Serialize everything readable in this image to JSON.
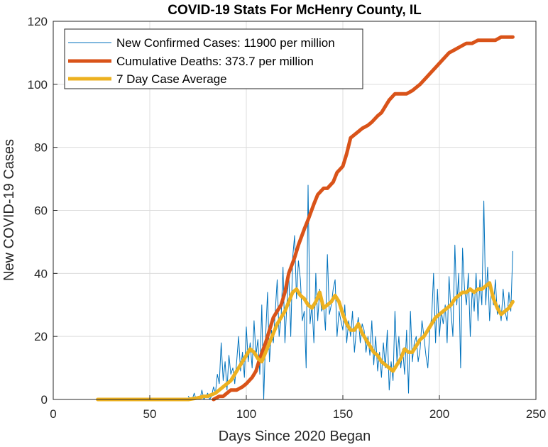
{
  "chart_data": {
    "type": "line",
    "title": "COVID-19 Stats For McHenry County, IL",
    "xlabel": "Days Since 2020 Began",
    "ylabel": "New COVID-19 Cases",
    "xlim": [
      0,
      250
    ],
    "ylim": [
      0,
      120
    ],
    "x_ticks": [
      0,
      50,
      100,
      150,
      200,
      250
    ],
    "y_ticks": [
      0,
      20,
      40,
      60,
      80,
      100,
      120
    ],
    "grid": true,
    "legend_position": "top-left",
    "series": [
      {
        "name": "New Confirmed Cases: 11900 per million",
        "color": "#0072BD",
        "style": "thin",
        "x": [
          70,
          71,
          72,
          73,
          74,
          75,
          76,
          77,
          78,
          79,
          80,
          81,
          82,
          83,
          84,
          85,
          86,
          87,
          88,
          89,
          90,
          91,
          92,
          93,
          94,
          95,
          96,
          97,
          98,
          99,
          100,
          101,
          102,
          103,
          104,
          105,
          106,
          107,
          108,
          109,
          110,
          111,
          112,
          113,
          114,
          115,
          116,
          117,
          118,
          119,
          120,
          121,
          122,
          123,
          124,
          125,
          126,
          127,
          128,
          129,
          130,
          131,
          132,
          133,
          134,
          135,
          136,
          137,
          138,
          139,
          140,
          141,
          142,
          143,
          144,
          145,
          146,
          147,
          148,
          149,
          150,
          151,
          152,
          153,
          154,
          155,
          156,
          157,
          158,
          159,
          160,
          161,
          162,
          163,
          164,
          165,
          166,
          167,
          168,
          169,
          170,
          171,
          172,
          173,
          174,
          175,
          176,
          177,
          178,
          179,
          180,
          181,
          182,
          183,
          184,
          185,
          186,
          187,
          188,
          189,
          190,
          191,
          192,
          193,
          194,
          195,
          196,
          197,
          198,
          199,
          200,
          201,
          202,
          203,
          204,
          205,
          206,
          207,
          208,
          209,
          210,
          211,
          212,
          213,
          214,
          215,
          216,
          217,
          218,
          219,
          220,
          221,
          222,
          223,
          224,
          225,
          226,
          227,
          228,
          229,
          230,
          231,
          232,
          233,
          234,
          235,
          236,
          237,
          238
        ],
        "y": [
          1,
          0,
          0,
          2,
          0,
          1,
          0,
          3,
          0,
          1,
          2,
          0,
          1,
          4,
          2,
          8,
          5,
          18,
          6,
          12,
          3,
          14,
          8,
          10,
          5,
          12,
          20,
          9,
          15,
          7,
          23,
          12,
          18,
          10,
          25,
          14,
          19,
          8,
          30,
          0,
          20,
          34,
          12,
          22,
          18,
          28,
          38,
          20,
          26,
          42,
          18,
          30,
          40,
          20,
          45,
          52,
          32,
          44,
          38,
          25,
          28,
          10,
          68,
          24,
          30,
          18,
          40,
          25,
          35,
          28,
          30,
          22,
          46,
          27,
          30,
          35,
          38,
          20,
          28,
          25,
          22,
          30,
          18,
          25,
          20,
          28,
          15,
          22,
          26,
          18,
          24,
          22,
          15,
          20,
          14,
          25,
          11,
          20,
          9,
          15,
          7,
          18,
          10,
          22,
          3,
          12,
          6,
          28,
          12,
          20,
          10,
          16,
          8,
          22,
          2,
          28,
          12,
          18,
          20,
          12,
          16,
          25,
          20,
          14,
          10,
          22,
          26,
          40,
          18,
          35,
          20,
          28,
          24,
          30,
          18,
          39,
          28,
          20,
          49,
          30,
          40,
          10,
          48,
          35,
          30,
          40,
          20,
          35,
          28,
          40,
          25,
          38,
          30,
          63,
          30,
          42,
          25,
          35,
          30,
          38,
          27,
          30,
          25,
          35,
          28,
          25,
          34,
          28,
          47
        ]
      },
      {
        "name": "Cumulative Deaths: 373.7 per million",
        "color": "#D95319",
        "style": "thick",
        "x": [
          83,
          86,
          88,
          90,
          92,
          95,
          98,
          100,
          103,
          105,
          107,
          110,
          112,
          114,
          116,
          118,
          120,
          122,
          125,
          127,
          130,
          132,
          135,
          137,
          140,
          142,
          145,
          147,
          150,
          152,
          154,
          156,
          158,
          160,
          163,
          165,
          168,
          170,
          172,
          174,
          177,
          180,
          183,
          186,
          190,
          193,
          196,
          199,
          202,
          205,
          208,
          211,
          214,
          217,
          220,
          223,
          226,
          229,
          232,
          235,
          238
        ],
        "y": [
          0,
          1,
          1,
          2,
          3,
          3,
          4,
          5,
          7,
          9,
          13,
          18,
          22,
          26,
          28,
          30,
          34,
          40,
          45,
          49,
          54,
          57,
          62,
          65,
          67,
          67,
          69,
          72,
          74,
          78,
          83,
          84,
          85,
          86,
          87,
          88,
          90,
          91,
          93,
          95,
          97,
          97,
          97,
          98,
          100,
          102,
          104,
          106,
          108,
          110,
          111,
          112,
          113,
          113,
          114,
          114,
          114,
          114,
          115,
          115,
          115
        ]
      },
      {
        "name": "7 Day Case Average",
        "color": "#EDB120",
        "style": "thick",
        "x": [
          23,
          30,
          40,
          50,
          60,
          70,
          75,
          78,
          80,
          82,
          84,
          86,
          88,
          90,
          92,
          94,
          96,
          98,
          100,
          102,
          104,
          106,
          108,
          110,
          112,
          114,
          116,
          118,
          120,
          122,
          124,
          126,
          128,
          130,
          132,
          134,
          136,
          138,
          140,
          142,
          144,
          146,
          148,
          150,
          152,
          154,
          156,
          158,
          160,
          162,
          164,
          166,
          168,
          170,
          172,
          174,
          176,
          178,
          180,
          182,
          184,
          186,
          188,
          190,
          192,
          194,
          196,
          198,
          200,
          202,
          204,
          206,
          208,
          210,
          212,
          214,
          216,
          218,
          220,
          222,
          224,
          226,
          228,
          230,
          232,
          234,
          236,
          238
        ],
        "y": [
          0,
          0,
          0,
          0,
          0,
          0,
          0.5,
          1,
          1,
          1.5,
          2,
          3,
          4,
          5,
          6,
          8,
          10,
          12,
          14,
          16,
          15,
          13,
          12,
          15,
          18,
          21,
          24,
          26,
          28,
          31,
          34,
          35,
          33,
          32,
          30,
          29,
          31,
          34,
          29,
          30,
          31,
          33,
          31,
          27,
          24,
          22,
          22,
          24,
          21,
          19,
          17,
          15,
          14,
          12,
          11,
          10,
          9,
          11,
          13,
          16,
          15,
          15,
          17,
          19,
          20,
          22,
          24,
          26,
          27,
          28,
          29,
          30,
          32,
          33,
          34,
          34,
          35,
          34,
          35,
          35,
          36,
          37,
          32,
          29,
          27,
          28,
          29,
          31
        ]
      }
    ]
  }
}
